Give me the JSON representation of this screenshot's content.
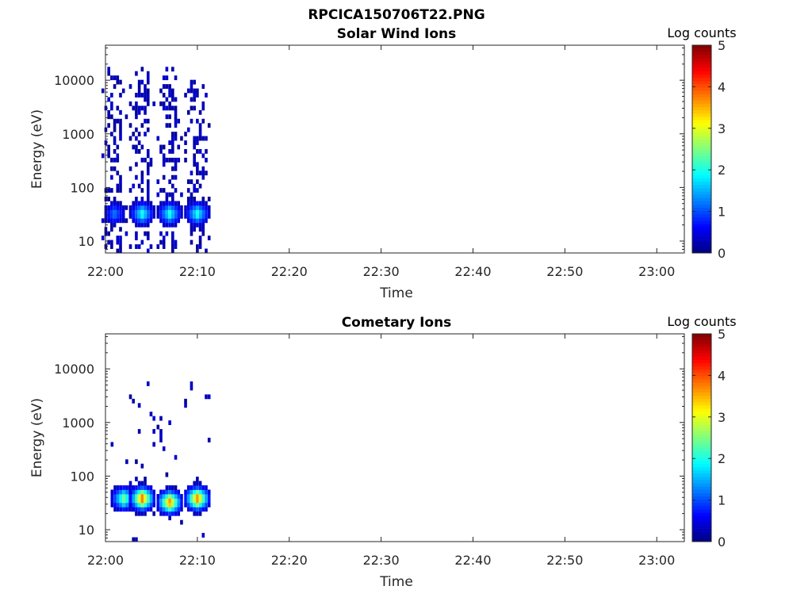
{
  "figure": {
    "title": "RPCICA150706T22.PNG",
    "colors": {
      "axes": "#262626",
      "background": "#ffffff"
    }
  },
  "chart_data": [
    {
      "type": "heatmap",
      "title": "Solar Wind Ions",
      "xlabel": "Time",
      "ylabel": "Energy (eV)",
      "yscale": "log",
      "ylim": [
        6,
        45000
      ],
      "xlim": [
        "22:00",
        "23:03"
      ],
      "xticks": [
        "22:00",
        "22:10",
        "22:20",
        "22:30",
        "22:40",
        "22:50",
        "23:00"
      ],
      "yticks": [
        "10",
        "100",
        "1000",
        "10000"
      ],
      "colorbar": {
        "label": "Log counts",
        "range": [
          0,
          5
        ],
        "ticks": [
          "0",
          "1",
          "2",
          "3",
          "4",
          "5"
        ],
        "colormap": "jet"
      },
      "bursts": [
        {
          "time": "22:01",
          "core_energy_eV": 30,
          "core_log_counts": 1.2,
          "max_energy_eV": 15000
        },
        {
          "time": "22:04",
          "core_energy_eV": 30,
          "core_log_counts": 2.0,
          "max_energy_eV": 15000
        },
        {
          "time": "22:07",
          "core_energy_eV": 30,
          "core_log_counts": 2.0,
          "max_energy_eV": 20000
        },
        {
          "time": "22:10",
          "core_energy_eV": 30,
          "core_log_counts": 2.0,
          "max_energy_eV": 13000
        }
      ]
    },
    {
      "type": "heatmap",
      "title": "Cometary Ions",
      "xlabel": "Time",
      "ylabel": "Energy (eV)",
      "yscale": "log",
      "ylim": [
        6,
        45000
      ],
      "xlim": [
        "22:00",
        "23:03"
      ],
      "xticks": [
        "22:00",
        "22:10",
        "22:20",
        "22:30",
        "22:40",
        "22:50",
        "23:00"
      ],
      "yticks": [
        "10",
        "100",
        "1000",
        "10000"
      ],
      "colorbar": {
        "label": "Log counts",
        "range": [
          0,
          5
        ],
        "ticks": [
          "0",
          "1",
          "2",
          "3",
          "4",
          "5"
        ],
        "colormap": "jet"
      },
      "bursts": [
        {
          "time": "22:02",
          "core_energy_eV": 35,
          "core_log_counts": 2.5,
          "max_energy_eV": 600
        },
        {
          "time": "22:04",
          "core_energy_eV": 35,
          "core_log_counts": 3.9,
          "max_energy_eV": 9000
        },
        {
          "time": "22:07",
          "core_energy_eV": 30,
          "core_log_counts": 3.7,
          "max_energy_eV": 1100
        },
        {
          "time": "22:10",
          "core_energy_eV": 35,
          "core_log_counts": 3.8,
          "max_energy_eV": 9000
        }
      ]
    }
  ]
}
